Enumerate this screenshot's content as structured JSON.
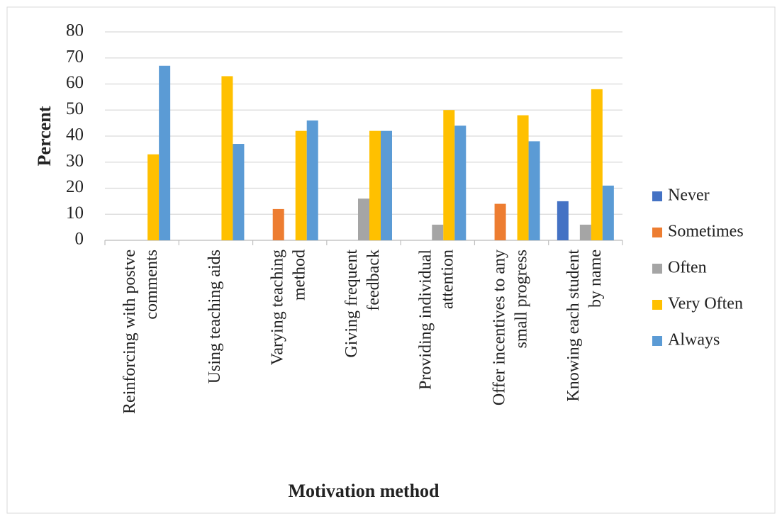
{
  "chart_data": {
    "type": "bar",
    "categories": [
      [
        "Reinforcing with postve",
        "comments"
      ],
      [
        "Using teaching aids"
      ],
      [
        "Varying teaching",
        "method"
      ],
      [
        "Giving frequent",
        "feedback"
      ],
      [
        "Providing individual",
        "attention"
      ],
      [
        "Offer incentives to any",
        "small progress"
      ],
      [
        "Knowing each student",
        "by name"
      ]
    ],
    "series": [
      {
        "name": "Never",
        "color": "#4472c4",
        "values": [
          0,
          0,
          0,
          0,
          0,
          0,
          15
        ]
      },
      {
        "name": "Sometimes",
        "color": "#ed7d31",
        "values": [
          0,
          0,
          12,
          0,
          0,
          14,
          0
        ]
      },
      {
        "name": "Often",
        "color": "#a5a5a5",
        "values": [
          0,
          0,
          0,
          16,
          6,
          0,
          6
        ]
      },
      {
        "name": "Very Often",
        "color": "#ffc000",
        "values": [
          33,
          63,
          42,
          42,
          50,
          48,
          58
        ]
      },
      {
        "name": "Always",
        "color": "#5b9bd5",
        "values": [
          67,
          37,
          46,
          42,
          44,
          38,
          21
        ]
      }
    ],
    "x_label": "Motivation method",
    "y_label": "Percent",
    "ylim": [
      0,
      80
    ],
    "yticks": [
      0,
      10,
      20,
      30,
      40,
      50,
      60,
      70,
      80
    ],
    "grid": true,
    "legend": "right"
  }
}
